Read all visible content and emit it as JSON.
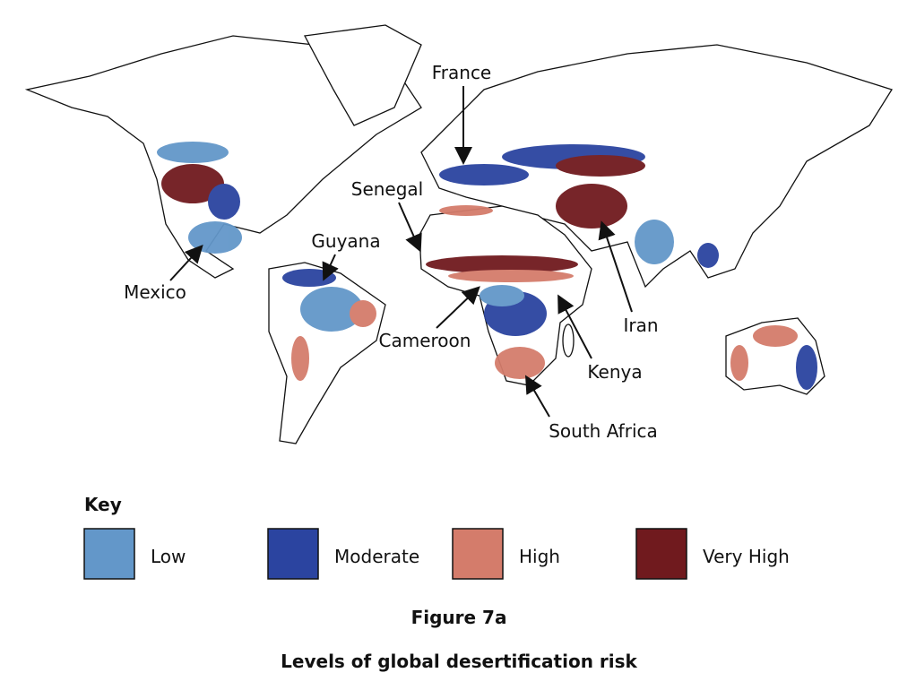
{
  "map": {
    "labels": [
      "France",
      "Senegal",
      "Guyana",
      "Mexico",
      "Cameroon",
      "Iran",
      "Kenya",
      "South Africa"
    ]
  },
  "key": {
    "title": "Key",
    "items": [
      {
        "label": "Low",
        "color": "#6397c9"
      },
      {
        "label": "Moderate",
        "color": "#2b44a0"
      },
      {
        "label": "High",
        "color": "#d47c6b"
      },
      {
        "label": "Very High",
        "color": "#701a1e"
      }
    ]
  },
  "figure": {
    "number": "Figure 7a",
    "caption": "Levels of global desertification risk"
  }
}
